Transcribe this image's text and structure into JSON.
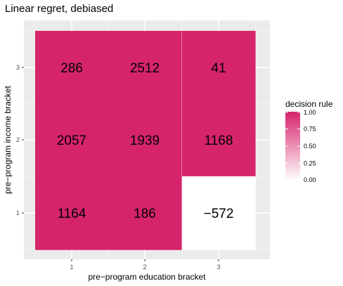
{
  "chart_data": {
    "type": "heatmap",
    "title": "Linear regret, debiased",
    "xlabel": "pre−program education bracket",
    "ylabel": "pre−program income bracket",
    "x_categories": [
      "1",
      "2",
      "3"
    ],
    "y_categories": [
      "1",
      "2",
      "3"
    ],
    "cells": [
      {
        "x": "1",
        "y": "3",
        "label": "286",
        "fill": 1.0
      },
      {
        "x": "2",
        "y": "3",
        "label": "2512",
        "fill": 1.0
      },
      {
        "x": "3",
        "y": "3",
        "label": "41",
        "fill": 1.0
      },
      {
        "x": "1",
        "y": "2",
        "label": "2057",
        "fill": 1.0
      },
      {
        "x": "2",
        "y": "2",
        "label": "1939",
        "fill": 1.0
      },
      {
        "x": "3",
        "y": "2",
        "label": "1168",
        "fill": 1.0
      },
      {
        "x": "1",
        "y": "1",
        "label": "1164",
        "fill": 1.0
      },
      {
        "x": "2",
        "y": "1",
        "label": "186",
        "fill": 1.0
      },
      {
        "x": "3",
        "y": "1",
        "label": "−572",
        "fill": 0.0
      }
    ],
    "legend": {
      "title": "decision rule",
      "ticks": [
        "0.00",
        "0.25",
        "0.50",
        "0.75",
        "1.00"
      ],
      "tick_values": [
        0,
        0.25,
        0.5,
        0.75,
        1.0
      ],
      "range": [
        0,
        1
      ],
      "color_low": "#ffffff",
      "color_high": "#d6246b",
      "placement": "right"
    },
    "grid": true,
    "panel_background": "#ebebeb"
  }
}
